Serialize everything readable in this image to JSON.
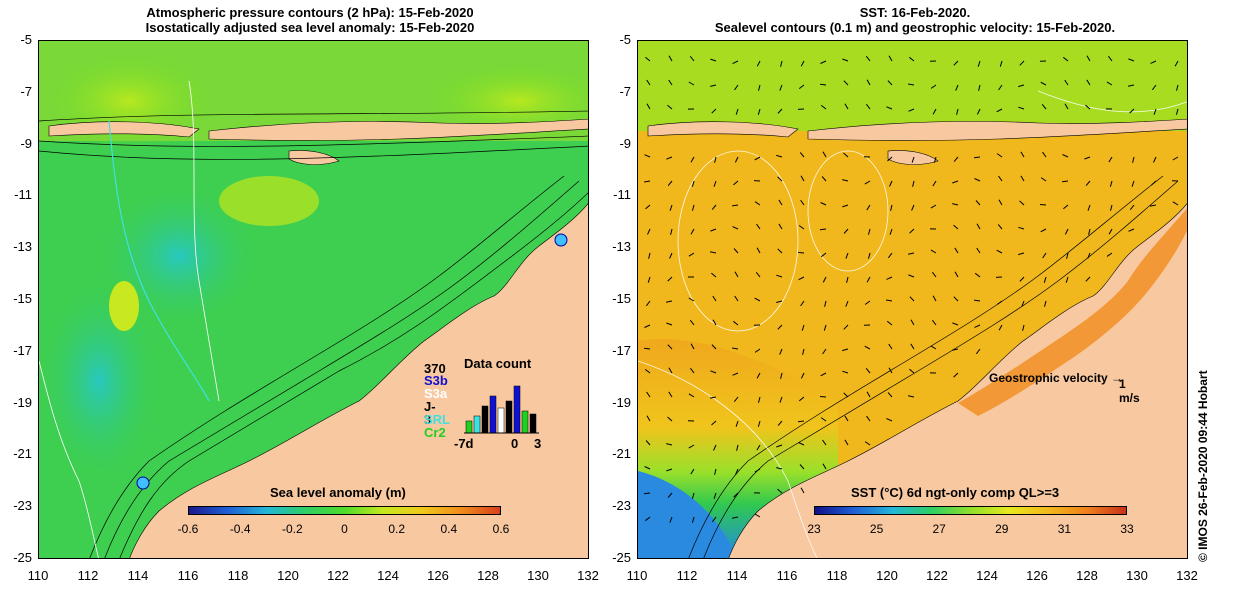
{
  "left_panel": {
    "title_line1": "Atmospheric pressure contours (2 hPa): 15-Feb-2020",
    "title_line2": "Isostatically adjusted sea level anomaly: 15-Feb-2020",
    "colorbar_title": "Sea level anomaly (m)",
    "colorbar_ticks": [
      "-0.6",
      "-0.4",
      "-0.2",
      "0",
      "0.2",
      "0.4",
      "0.6"
    ],
    "colorbar_colors": [
      "#1a1a8c",
      "#1f5fd6",
      "#22b8d8",
      "#2ecf64",
      "#4fdc2a",
      "#c7e81f",
      "#f0c81c",
      "#f08c1c",
      "#d8401c"
    ],
    "data_count": {
      "title": "Data count",
      "max": "370",
      "satellites": [
        {
          "name": "S3b",
          "color": "#1010d0"
        },
        {
          "name": "S3a",
          "color": "#ffffff"
        },
        {
          "name": "J-3",
          "color": "#000000"
        },
        {
          "name": "SRL",
          "color": "#40e0e0"
        },
        {
          "name": "Cr2",
          "color": "#20d020"
        }
      ],
      "x_ticks": [
        "-7d",
        "0",
        "3"
      ]
    }
  },
  "right_panel": {
    "title_line1": "SST: 16-Feb-2020.",
    "title_line2": "Sealevel contours (0.1 m) and geostrophic velocity: 15-Feb-2020.",
    "colorbar_title": "SST (°C) 6d ngt-only comp QL>=3",
    "colorbar_ticks": [
      "23",
      "25",
      "27",
      "29",
      "31",
      "33"
    ],
    "colorbar_colors": [
      "#10108a",
      "#1f5fd6",
      "#22b8d8",
      "#2ecf64",
      "#8fe02a",
      "#e8e81f",
      "#f0b81c",
      "#f0801c",
      "#c8301c"
    ],
    "velocity_label": "Geostrophic velocity",
    "velocity_scale": "1 m/s"
  },
  "axes": {
    "y_ticks": [
      "-5",
      "-7",
      "-9",
      "-11",
      "-13",
      "-15",
      "-17",
      "-19",
      "-21",
      "-23",
      "-25"
    ],
    "x_ticks": [
      "110",
      "112",
      "114",
      "116",
      "118",
      "120",
      "122",
      "124",
      "126",
      "128",
      "130",
      "132"
    ]
  },
  "credit": "© IMOS 26-Feb-2020 09:44 Hobart",
  "colors": {
    "land": "#f8c8a0",
    "sla_ocean": "#36cc5a",
    "sst_ocean": "#f0b81c"
  }
}
